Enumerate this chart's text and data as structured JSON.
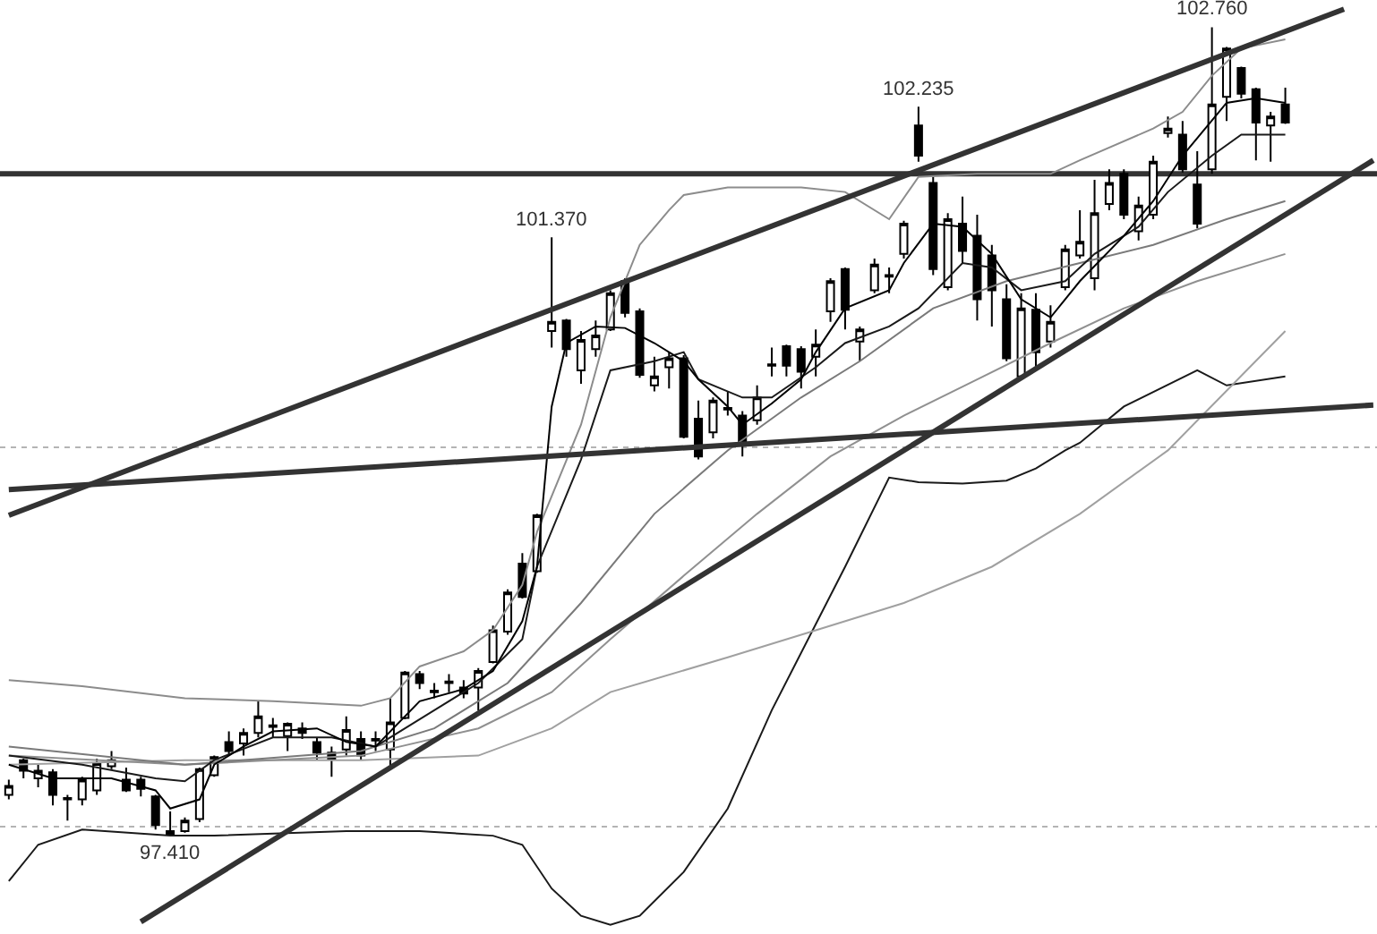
{
  "chart_data": {
    "type": "candlestick",
    "grid": false,
    "categories": [
      null,
      null,
      null,
      null,
      null,
      null,
      null,
      null,
      null,
      null,
      null,
      null,
      null,
      null,
      null,
      null,
      null,
      null,
      null,
      null,
      null,
      null,
      null,
      null,
      null,
      null,
      null,
      null,
      null,
      null,
      null,
      null,
      null,
      null,
      null,
      null,
      null,
      null,
      null,
      null,
      null,
      null,
      null,
      null,
      null,
      null,
      null,
      null,
      null,
      null,
      null,
      null,
      null,
      null,
      null,
      null,
      null,
      null,
      null,
      null,
      null,
      null,
      null,
      null,
      null,
      null,
      null,
      null,
      null,
      null,
      null,
      null,
      null,
      null,
      null,
      null,
      null,
      null,
      null,
      null,
      null,
      null,
      null,
      null,
      null,
      null,
      null,
      null,
      null,
      null,
      null,
      null,
      null,
      null
    ],
    "ohlc": [
      [
        97.68,
        97.78,
        97.65,
        97.74
      ],
      [
        97.91,
        97.92,
        97.79,
        97.84
      ],
      [
        97.79,
        97.88,
        97.73,
        97.84
      ],
      [
        97.83,
        97.85,
        97.61,
        97.68
      ],
      [
        97.66,
        97.68,
        97.51,
        97.65
      ],
      [
        97.65,
        97.8,
        97.61,
        97.78
      ],
      [
        97.71,
        97.92,
        97.68,
        97.89
      ],
      [
        97.87,
        97.97,
        97.85,
        97.91
      ],
      [
        97.78,
        97.86,
        97.7,
        97.71
      ],
      [
        97.78,
        97.8,
        97.67,
        97.72
      ],
      [
        97.67,
        97.68,
        97.45,
        97.48
      ],
      [
        97.44,
        97.57,
        97.41,
        97.42
      ],
      [
        97.44,
        97.53,
        97.43,
        97.51
      ],
      [
        97.52,
        97.86,
        97.5,
        97.85
      ],
      [
        97.81,
        97.94,
        97.8,
        97.93
      ],
      [
        98.03,
        98.1,
        97.94,
        97.97
      ],
      [
        98.02,
        98.12,
        97.94,
        98.09
      ],
      [
        98.09,
        98.3,
        98.06,
        98.2
      ],
      [
        98.13,
        98.19,
        98.06,
        98.14
      ],
      [
        98.07,
        98.16,
        97.97,
        98.15
      ],
      [
        98.12,
        98.16,
        98.05,
        98.09
      ],
      [
        98.03,
        98.06,
        97.91,
        97.96
      ],
      [
        97.96,
        98.0,
        97.8,
        97.92
      ],
      [
        97.98,
        98.2,
        97.94,
        98.11
      ],
      [
        98.05,
        98.1,
        97.91,
        97.94
      ],
      [
        98.05,
        98.1,
        97.97,
        98.04
      ],
      [
        97.98,
        98.32,
        97.86,
        98.16
      ],
      [
        98.19,
        98.5,
        98.18,
        98.49
      ],
      [
        98.48,
        98.5,
        98.38,
        98.42
      ],
      [
        98.36,
        98.42,
        98.32,
        98.37
      ],
      [
        98.42,
        98.48,
        98.36,
        98.43
      ],
      [
        98.39,
        98.44,
        98.32,
        98.35
      ],
      [
        98.39,
        98.52,
        98.24,
        98.5
      ],
      [
        98.56,
        98.8,
        98.55,
        98.77
      ],
      [
        98.76,
        99.04,
        98.74,
        99.02
      ],
      [
        99.21,
        99.28,
        98.98,
        98.99
      ],
      [
        99.16,
        99.54,
        99.15,
        99.53
      ],
      [
        100.75,
        101.37,
        100.64,
        100.81
      ],
      [
        100.82,
        100.83,
        100.58,
        100.63
      ],
      [
        100.49,
        100.75,
        100.4,
        100.69
      ],
      [
        100.63,
        100.82,
        100.58,
        100.72
      ],
      [
        100.76,
        101.02,
        100.75,
        101.0
      ],
      [
        101.08,
        101.1,
        100.84,
        100.87
      ],
      [
        100.88,
        100.9,
        100.44,
        100.46
      ],
      [
        100.39,
        100.58,
        100.35,
        100.45
      ],
      [
        100.51,
        100.61,
        100.37,
        100.57
      ],
      [
        100.57,
        100.59,
        100.04,
        100.05
      ],
      [
        100.17,
        100.29,
        99.9,
        99.92
      ],
      [
        100.08,
        100.31,
        100.04,
        100.29
      ],
      [
        100.23,
        100.35,
        100.19,
        100.24
      ],
      [
        100.19,
        100.22,
        99.92,
        100.01
      ],
      [
        100.16,
        100.39,
        100.13,
        100.31
      ],
      [
        100.52,
        100.64,
        100.45,
        100.53
      ],
      [
        100.65,
        100.66,
        100.45,
        100.52
      ],
      [
        100.63,
        100.65,
        100.37,
        100.48
      ],
      [
        100.58,
        100.76,
        100.45,
        100.66
      ],
      [
        100.88,
        101.1,
        100.81,
        101.08
      ],
      [
        101.16,
        101.17,
        100.76,
        100.89
      ],
      [
        100.68,
        100.78,
        100.55,
        100.76
      ],
      [
        101.02,
        101.23,
        101.0,
        101.19
      ],
      [
        101.11,
        101.17,
        101.0,
        101.12
      ],
      [
        101.26,
        101.48,
        101.23,
        101.46
      ],
      [
        102.11,
        102.235,
        101.87,
        101.91
      ],
      [
        101.73,
        101.77,
        101.12,
        101.16
      ],
      [
        101.04,
        101.53,
        101.02,
        101.49
      ],
      [
        101.46,
        101.64,
        101.2,
        101.28
      ],
      [
        101.38,
        101.52,
        100.82,
        100.96
      ],
      [
        101.25,
        101.32,
        100.78,
        101.02
      ],
      [
        100.96,
        101.06,
        100.55,
        100.57
      ],
      [
        100.45,
        101.0,
        100.44,
        100.9
      ],
      [
        100.89,
        101.0,
        100.49,
        100.61
      ],
      [
        100.68,
        100.92,
        100.64,
        100.81
      ],
      [
        101.04,
        101.32,
        101.02,
        101.29
      ],
      [
        101.25,
        101.55,
        101.23,
        101.34
      ],
      [
        101.1,
        101.75,
        101.02,
        101.53
      ],
      [
        101.59,
        101.82,
        101.55,
        101.73
      ],
      [
        101.79,
        101.82,
        101.49,
        101.52
      ],
      [
        101.41,
        101.64,
        101.35,
        101.58
      ],
      [
        101.52,
        101.91,
        101.49,
        101.87
      ],
      [
        102.06,
        102.17,
        102.03,
        102.09
      ],
      [
        102.05,
        102.14,
        101.8,
        101.82
      ],
      [
        101.72,
        101.94,
        101.43,
        101.46
      ],
      [
        101.82,
        102.76,
        101.79,
        102.25
      ],
      [
        102.3,
        102.63,
        102.14,
        102.62
      ],
      [
        102.49,
        102.5,
        102.29,
        102.32
      ],
      [
        102.35,
        102.36,
        101.88,
        102.13
      ],
      [
        102.11,
        102.2,
        101.87,
        102.17
      ],
      [
        102.25,
        102.36,
        102.12,
        102.13
      ],
      null,
      null,
      null,
      null,
      null,
      null
    ],
    "series": [
      {
        "type": "line",
        "color": "#8c8c8c",
        "values": [
          98.44,
          null,
          null,
          null,
          null,
          98.4,
          null,
          null,
          null,
          null,
          null,
          null,
          98.32,
          null,
          null,
          null,
          null,
          null,
          98.3,
          null,
          null,
          null,
          null,
          null,
          98.27,
          null,
          98.32,
          null,
          98.53,
          null,
          null,
          98.63,
          null,
          98.77,
          null,
          99.07,
          99.42,
          null,
          null,
          100.13,
          null,
          100.84,
          null,
          101.32,
          null,
          101.55,
          101.65,
          null,
          null,
          101.7,
          null,
          null,
          null,
          null,
          101.7,
          null,
          null,
          101.67,
          null,
          null,
          101.49,
          null,
          101.77,
          null,
          null,
          null,
          101.79,
          null,
          null,
          null,
          null,
          101.79,
          null,
          101.88,
          null,
          null,
          null,
          null,
          102.09,
          null,
          102.2,
          null,
          102.44,
          null,
          102.62,
          null,
          null,
          102.68,
          null,
          null,
          null,
          null,
          null,
          null
        ]
      },
      {
        "type": "line",
        "color": "#1a1a1a",
        "values": [
          97.11,
          null,
          97.35,
          null,
          null,
          97.45,
          null,
          null,
          null,
          null,
          null,
          97.41,
          null,
          null,
          97.41,
          null,
          null,
          null,
          null,
          null,
          null,
          null,
          null,
          97.44,
          null,
          null,
          null,
          null,
          97.44,
          null,
          null,
          null,
          null,
          97.41,
          null,
          97.35,
          null,
          97.06,
          null,
          96.88,
          null,
          96.82,
          null,
          96.88,
          null,
          null,
          97.17,
          null,
          null,
          97.59,
          null,
          null,
          98.24,
          null,
          null,
          null,
          null,
          99.19,
          null,
          null,
          99.78,
          null,
          99.75,
          null,
          null,
          99.74,
          null,
          null,
          99.76,
          null,
          99.84,
          null,
          99.96,
          100.01,
          null,
          null,
          100.25,
          null,
          null,
          null,
          null,
          100.49,
          null,
          100.39,
          null,
          null,
          null,
          100.45,
          null,
          null,
          null,
          null,
          null,
          null
        ]
      },
      {
        "type": "line",
        "color": "#a0a0a0",
        "values": [
          97.88,
          null,
          null,
          null,
          null,
          null,
          null,
          null,
          null,
          null,
          null,
          null,
          97.91,
          null,
          null,
          null,
          null,
          null,
          null,
          null,
          null,
          null,
          null,
          null,
          97.91,
          null,
          null,
          null,
          null,
          null,
          null,
          null,
          97.94,
          null,
          null,
          null,
          null,
          98.12,
          null,
          null,
          null,
          98.36,
          null,
          null,
          null,
          null,
          null,
          null,
          null,
          98.59,
          null,
          null,
          null,
          null,
          null,
          98.77,
          null,
          null,
          null,
          null,
          null,
          98.95,
          null,
          null,
          null,
          null,
          null,
          99.19,
          null,
          null,
          null,
          null,
          null,
          99.54,
          null,
          null,
          null,
          null,
          null,
          99.96,
          null,
          null,
          null,
          null,
          null,
          null,
          null,
          100.75,
          null,
          null,
          null,
          null,
          null,
          null
        ]
      },
      {
        "type": "line",
        "color": "#909090",
        "values": [
          97.94,
          null,
          null,
          null,
          null,
          null,
          null,
          null,
          null,
          null,
          null,
          null,
          97.88,
          null,
          null,
          null,
          null,
          null,
          null,
          null,
          null,
          null,
          null,
          null,
          97.94,
          null,
          null,
          null,
          null,
          null,
          null,
          null,
          98.12,
          null,
          null,
          null,
          null,
          98.36,
          null,
          null,
          null,
          98.71,
          null,
          null,
          null,
          null,
          99.13,
          null,
          null,
          null,
          null,
          99.54,
          null,
          null,
          null,
          null,
          99.92,
          null,
          null,
          null,
          null,
          100.19,
          null,
          null,
          null,
          null,
          100.43,
          null,
          null,
          null,
          null,
          100.67,
          null,
          null,
          null,
          null,
          100.9,
          null,
          null,
          null,
          null,
          101.08,
          null,
          null,
          null,
          null,
          null,
          101.26,
          null,
          null,
          null,
          null,
          null,
          null
        ]
      },
      {
        "type": "line",
        "color": "#7a7a7a",
        "values": [
          98.0,
          null,
          null,
          null,
          null,
          null,
          null,
          null,
          null,
          null,
          null,
          null,
          97.88,
          null,
          null,
          null,
          null,
          null,
          null,
          null,
          null,
          null,
          null,
          null,
          97.97,
          null,
          null,
          null,
          null,
          98.12,
          null,
          null,
          null,
          null,
          98.42,
          null,
          null,
          null,
          null,
          98.95,
          null,
          null,
          null,
          null,
          99.54,
          null,
          null,
          null,
          null,
          99.96,
          null,
          null,
          null,
          null,
          100.31,
          null,
          null,
          null,
          100.55,
          null,
          null,
          null,
          null,
          100.9,
          null,
          null,
          null,
          null,
          101.08,
          null,
          null,
          null,
          null,
          101.2,
          null,
          null,
          null,
          null,
          101.32,
          null,
          null,
          null,
          null,
          101.49,
          null,
          null,
          null,
          101.61,
          null,
          null,
          null,
          null,
          null,
          null
        ]
      },
      {
        "type": "line",
        "color": "#1a1a1a",
        "values": [
          97.94,
          null,
          null,
          null,
          null,
          97.88,
          null,
          null,
          null,
          null,
          97.79,
          null,
          97.77,
          null,
          97.91,
          null,
          null,
          null,
          98.06,
          null,
          null,
          null,
          98.06,
          null,
          null,
          98.0,
          null,
          null,
          null,
          98.24,
          null,
          null,
          98.42,
          null,
          null,
          98.71,
          99.19,
          null,
          null,
          99.9,
          null,
          100.49,
          null,
          null,
          100.55,
          null,
          100.61,
          100.43,
          null,
          null,
          100.31,
          null,
          100.31,
          null,
          null,
          100.51,
          null,
          100.67,
          null,
          null,
          100.78,
          null,
          100.9,
          null,
          null,
          101.2,
          null,
          101.17,
          null,
          101.02,
          null,
          null,
          101.08,
          null,
          101.26,
          null,
          null,
          101.44,
          null,
          101.67,
          null,
          null,
          101.91,
          null,
          102.05,
          null,
          null,
          102.05,
          null,
          null,
          null,
          null,
          null,
          null
        ]
      },
      {
        "type": "line",
        "color": "#000000",
        "values": [
          97.88,
          null,
          null,
          97.79,
          null,
          null,
          null,
          97.79,
          null,
          null,
          97.71,
          97.59,
          null,
          97.65,
          97.88,
          null,
          98.0,
          null,
          98.1,
          null,
          null,
          98.12,
          null,
          98.03,
          null,
          98.0,
          null,
          null,
          98.3,
          null,
          null,
          98.38,
          null,
          98.5,
          null,
          98.83,
          99.19,
          100.25,
          100.67,
          null,
          100.78,
          null,
          100.77,
          null,
          100.67,
          null,
          100.55,
          100.43,
          null,
          100.25,
          100.13,
          null,
          100.27,
          null,
          100.43,
          100.61,
          null,
          100.9,
          null,
          null,
          101.02,
          101.2,
          null,
          101.46,
          null,
          101.44,
          null,
          101.26,
          null,
          100.96,
          null,
          100.84,
          null,
          101.08,
          null,
          null,
          101.38,
          null,
          101.61,
          null,
          101.91,
          null,
          null,
          102.26,
          null,
          102.29,
          null,
          102.26,
          null,
          null,
          null,
          null,
          null,
          null
        ]
      },
      {
        "type": "line",
        "color": "#333333",
        "values": [
          99.53,
          null,
          null,
          null,
          null,
          null,
          null,
          null,
          null,
          null,
          null,
          null,
          null,
          null,
          null,
          null,
          null,
          null,
          null,
          null,
          null,
          null,
          null,
          null,
          null,
          null,
          null,
          null,
          null,
          null,
          null,
          null,
          null,
          null,
          null,
          null,
          null,
          null,
          null,
          null,
          null,
          null,
          null,
          null,
          null,
          null,
          null,
          null,
          null,
          null,
          null,
          null,
          null,
          null,
          null,
          null,
          null,
          null,
          null,
          null,
          null,
          null,
          null,
          null,
          null,
          null,
          null,
          null,
          null,
          null,
          null,
          null,
          null,
          null,
          null,
          null,
          null,
          null,
          null,
          null,
          null,
          null,
          null,
          null,
          null,
          null,
          null,
          null,
          null,
          null,
          null,
          102.88,
          null,
          null
        ]
      },
      {
        "type": "line",
        "color": "#333333",
        "values": [
          null,
          null,
          null,
          null,
          null,
          null,
          null,
          null,
          null,
          96.84,
          null,
          null,
          null,
          null,
          null,
          null,
          null,
          null,
          null,
          null,
          null,
          null,
          null,
          null,
          null,
          null,
          null,
          null,
          null,
          null,
          null,
          null,
          null,
          null,
          null,
          null,
          null,
          null,
          null,
          null,
          null,
          null,
          null,
          null,
          null,
          null,
          null,
          null,
          null,
          null,
          null,
          null,
          null,
          null,
          null,
          null,
          null,
          null,
          null,
          null,
          null,
          null,
          null,
          null,
          null,
          null,
          null,
          null,
          null,
          null,
          null,
          null,
          null,
          null,
          null,
          null,
          null,
          null,
          null,
          null,
          null,
          null,
          null,
          null,
          null,
          null,
          null,
          null,
          null,
          null,
          null,
          null,
          null,
          101.88
        ]
      },
      {
        "type": "line",
        "color": "#333333",
        "values": [
          99.7,
          null,
          null,
          null,
          null,
          null,
          null,
          null,
          null,
          null,
          null,
          null,
          null,
          null,
          null,
          null,
          null,
          null,
          null,
          null,
          null,
          null,
          null,
          null,
          null,
          null,
          null,
          null,
          null,
          null,
          null,
          null,
          null,
          null,
          null,
          null,
          null,
          null,
          null,
          null,
          null,
          null,
          null,
          null,
          null,
          null,
          null,
          null,
          null,
          null,
          null,
          null,
          null,
          null,
          null,
          null,
          null,
          null,
          null,
          null,
          null,
          null,
          null,
          null,
          null,
          null,
          null,
          null,
          null,
          null,
          null,
          null,
          null,
          null,
          null,
          null,
          null,
          null,
          null,
          null,
          null,
          null,
          null,
          null,
          null,
          null,
          null,
          null,
          null,
          null,
          null,
          null,
          null,
          100.26
        ]
      }
    ],
    "ref_lines": [
      {
        "axis": "y",
        "value": 101.79,
        "color": "#333333",
        "line_style": "solid"
      },
      {
        "axis": "y",
        "value": 99.98,
        "color": "#b4b4b4",
        "line_style": "dotted"
      },
      {
        "axis": "y",
        "value": 97.47,
        "color": "#b4b4b4",
        "line_style": "dotted"
      }
    ],
    "annotations": [
      {
        "text": "101.370",
        "y": 101.37
      },
      {
        "text": "102.235",
        "y": 102.235
      },
      {
        "text": "102.760",
        "y": 102.76
      },
      {
        "text": "97.410",
        "y": 97.41
      }
    ]
  }
}
